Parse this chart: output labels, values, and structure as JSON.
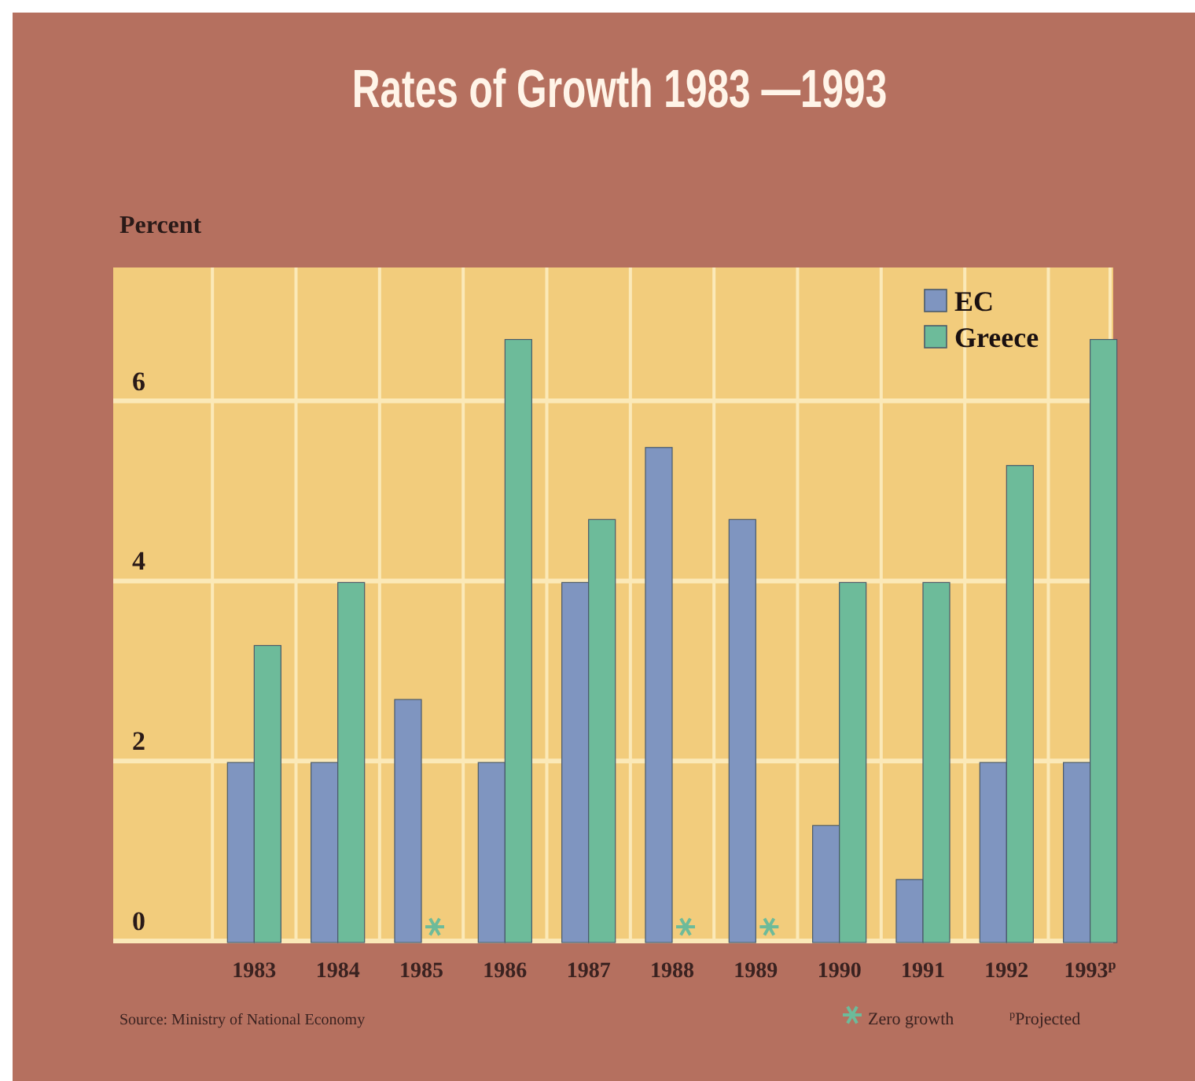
{
  "chart_data": {
    "type": "bar",
    "title": "Rates of Growth 1983 —1993",
    "ylabel": "Percent",
    "categories": [
      "1983",
      "1984",
      "1985",
      "1986",
      "1987",
      "1988",
      "1989",
      "1990",
      "1991",
      "1992",
      "1993$^{p}$"
    ],
    "series": [
      {
        "name": "EC",
        "color": "#7f95c0",
        "values": [
          2,
          2,
          2.7,
          2,
          4,
          5.5,
          4.7,
          1.3,
          0.7,
          2,
          2
        ]
      },
      {
        "name": "Greece",
        "color": "#6dbb9a",
        "values": [
          3.3,
          4,
          0,
          6.7,
          4.7,
          0,
          0,
          4,
          4,
          5.3,
          6.7
        ]
      }
    ],
    "ylim": [
      0,
      7.5
    ],
    "yticks": [
      0,
      2,
      4,
      6
    ],
    "grid": true,
    "legend": "top right",
    "annotations": [
      "Source: Ministry of National Economy",
      "Zero growth",
      "$^{p}$Projected"
    ]
  }
}
